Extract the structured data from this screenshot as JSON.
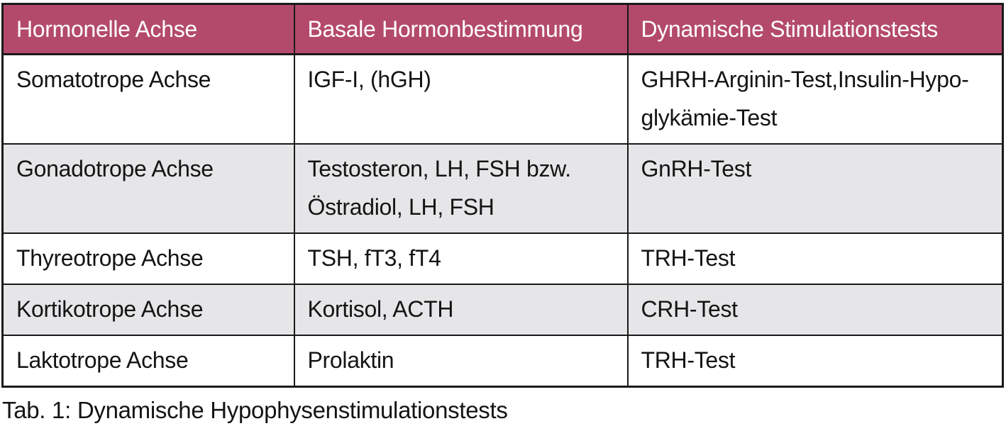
{
  "colors": {
    "header_bg": "#b44a6b",
    "header_text": "#ffffff",
    "row_alt_bg": "#e6e6e8",
    "row_bg": "#ffffff",
    "border": "#1a1a1a",
    "body_text": "#141414"
  },
  "table": {
    "headers": [
      "Hormonelle Achse",
      "Basale Hormonbestimmung",
      "Dynamische Stimulationstests"
    ],
    "rows": [
      [
        "Somatotrope Achse",
        "IGF-I, (hGH)",
        "GHRH-Arginin-Test,Insulin-Hypo-\nglykämie-Test"
      ],
      [
        "Gonadotrope Achse",
        "Testosteron, LH, FSH bzw.\nÖstradiol, LH, FSH",
        "GnRH-Test"
      ],
      [
        "Thyreotrope Achse",
        "TSH, fT3, fT4",
        "TRH-Test"
      ],
      [
        "Kortikotrope Achse",
        "Kortisol, ACTH",
        "CRH-Test"
      ],
      [
        "Laktotrope Achse",
        "Prolaktin",
        "TRH-Test"
      ]
    ]
  },
  "caption": "Tab. 1: Dynamische Hypophysenstimulationstests",
  "chart_data": {
    "type": "table",
    "title": "Tab. 1: Dynamische Hypophysenstimulationstests",
    "columns": [
      "Hormonelle Achse",
      "Basale Hormonbestimmung",
      "Dynamische Stimulationstests"
    ],
    "rows": [
      [
        "Somatotrope Achse",
        "IGF-I, (hGH)",
        "GHRH-Arginin-Test,Insulin-Hypoglykämie-Test"
      ],
      [
        "Gonadotrope Achse",
        "Testosteron, LH, FSH bzw. Östradiol, LH, FSH",
        "GnRH-Test"
      ],
      [
        "Thyreotrope Achse",
        "TSH, fT3, fT4",
        "TRH-Test"
      ],
      [
        "Kortikotrope Achse",
        "Kortisol, ACTH",
        "CRH-Test"
      ],
      [
        "Laktotrope Achse",
        "Prolaktin",
        "TRH-Test"
      ]
    ]
  }
}
